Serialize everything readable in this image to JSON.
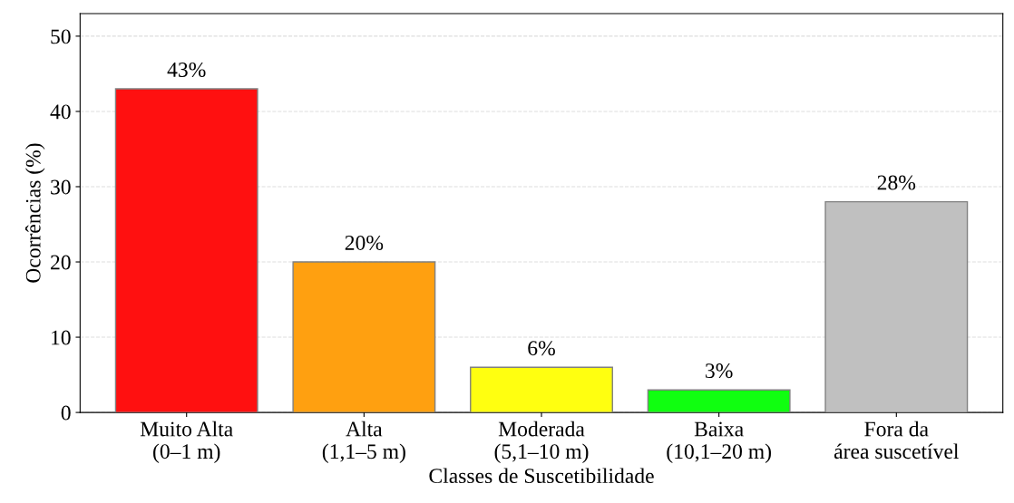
{
  "chart_data": {
    "type": "bar",
    "xlabel": "Classes de Suscetibilidade",
    "ylabel": "Ocorrências (%)",
    "categories": [
      "Muito Alta\n(0–1 m)",
      "Alta\n(1,1–5 m)",
      "Moderada\n(5,1–10 m)",
      "Baixa\n(10,1–20 m)",
      "Fora da\nárea suscetível"
    ],
    "values": [
      43,
      20,
      6,
      3,
      28
    ],
    "value_labels": [
      "43%",
      "20%",
      "6%",
      "3%",
      "28%"
    ],
    "colors": [
      "#ff1010",
      "#ffa010",
      "#ffff10",
      "#10ff10",
      "#c0c0c0"
    ],
    "ylim": [
      0,
      53
    ],
    "yticks": [
      0,
      10,
      20,
      30,
      40,
      50
    ],
    "grid": "y"
  }
}
